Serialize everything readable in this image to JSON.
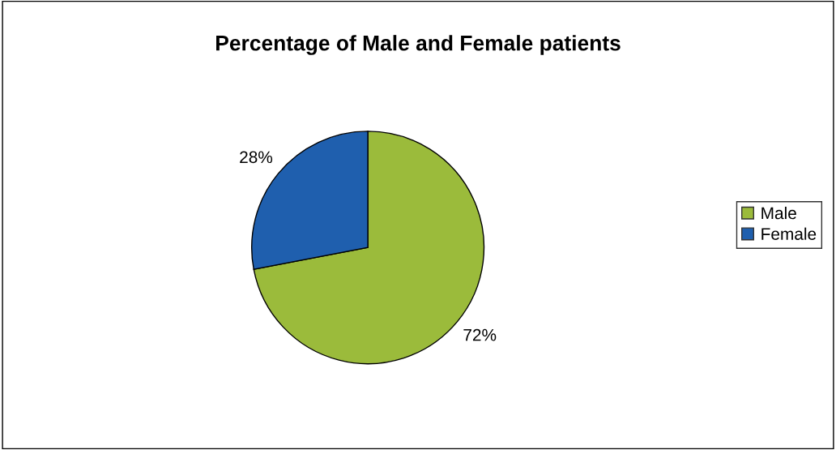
{
  "chart_data": {
    "type": "pie",
    "title": "Percentage of Male and Female patients",
    "categories": [
      "Male",
      "Female"
    ],
    "values": [
      72,
      28
    ],
    "colors": [
      "#9bbb3b",
      "#1f5fae"
    ],
    "value_labels": [
      "72%",
      "28%"
    ],
    "legend": "right"
  }
}
